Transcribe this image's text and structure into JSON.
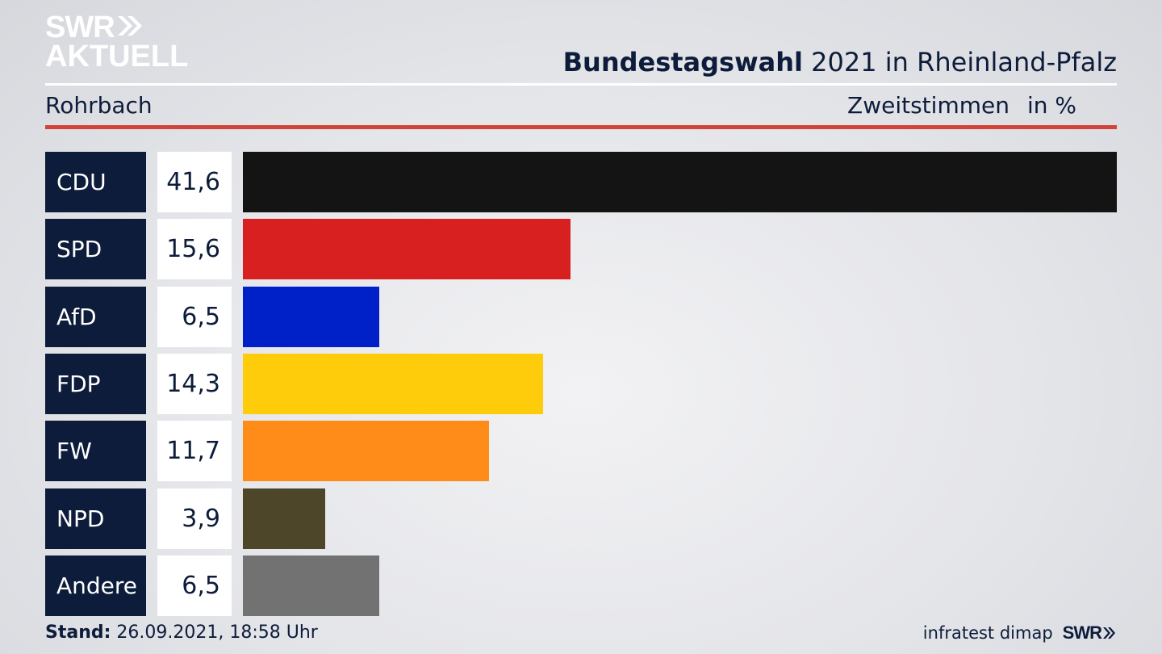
{
  "header": {
    "logo_line1": "SWR",
    "logo_line2": "AKTUELL",
    "title_bold": "Bundestagswahl",
    "title_rest": " 2021 in Rheinland-Pfalz",
    "region": "Rohrbach",
    "metric": "Zweitstimmen",
    "unit": "in %"
  },
  "chart_data": {
    "type": "bar",
    "orientation": "horizontal",
    "categories": [
      "CDU",
      "SPD",
      "AfD",
      "FDP",
      "FW",
      "NPD",
      "Andere"
    ],
    "values": [
      41.6,
      15.6,
      6.5,
      14.3,
      11.7,
      3.9,
      6.5
    ],
    "value_labels": [
      "41,6",
      "15,6",
      "6,5",
      "14,3",
      "11,7",
      "3,9",
      "6,5"
    ],
    "colors": [
      "#141414",
      "#d92020",
      "#0021c8",
      "#ffcc0b",
      "#ff8c19",
      "#4d4628",
      "#727272"
    ],
    "title": "Bundestagswahl 2021 in Rheinland-Pfalz",
    "xlim": [
      0,
      41.6
    ]
  },
  "footer": {
    "stand_label": "Stand:",
    "stand_value": " 26.09.2021, 18:58 Uhr",
    "source": "infratest dimap",
    "brand": "SWR"
  }
}
